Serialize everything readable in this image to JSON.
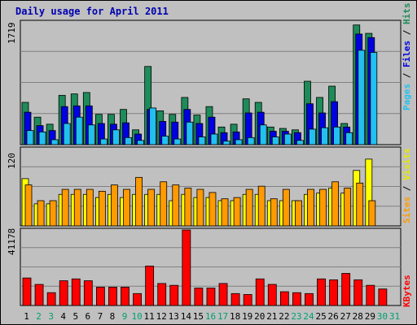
{
  "title": "Daily usage for April 2011",
  "chart_data": [
    {
      "type": "bar",
      "name": "hits-files-pages",
      "max_label": "1719",
      "ylim": [
        0,
        1719
      ],
      "legend": [
        "Pages",
        "Files",
        "Hits"
      ],
      "colors": {
        "Hits": "#1e8b5a",
        "Files": "#0000e0",
        "Pages": "#22c0f0",
        "Legend_sep": "#000000"
      },
      "series": [
        {
          "name": "Hits",
          "values": [
            600,
            390,
            290,
            700,
            720,
            740,
            430,
            430,
            500,
            210,
            1110,
            480,
            430,
            670,
            420,
            540,
            250,
            290,
            650,
            600,
            250,
            230,
            210,
            900,
            670,
            830,
            300,
            1699,
            1580,
            0
          ]
        },
        {
          "name": "Files",
          "values": [
            460,
            270,
            200,
            540,
            550,
            550,
            300,
            290,
            310,
            150,
            500,
            330,
            320,
            500,
            300,
            390,
            170,
            180,
            450,
            460,
            190,
            190,
            170,
            580,
            450,
            610,
            250,
            1570,
            1520,
            0
          ]
        },
        {
          "name": "Pages",
          "values": [
            200,
            180,
            70,
            300,
            390,
            280,
            80,
            210,
            100,
            60,
            520,
            120,
            80,
            320,
            110,
            150,
            50,
            70,
            100,
            280,
            110,
            150,
            60,
            220,
            240,
            250,
            170,
            1340,
            1310,
            0
          ]
        }
      ]
    },
    {
      "type": "bar",
      "name": "visits-sites",
      "max_label": "120",
      "ylim": [
        0,
        120
      ],
      "legend": [
        "Sites",
        "Visits"
      ],
      "colors": {
        "Visits": "#ffff00",
        "Sites": "#ff9a00"
      },
      "series": [
        {
          "name": "Visits",
          "values": [
            75,
            35,
            35,
            50,
            50,
            50,
            45,
            50,
            45,
            50,
            50,
            50,
            40,
            50,
            45,
            45,
            40,
            40,
            50,
            50,
            40,
            40,
            40,
            50,
            52,
            60,
            52,
            88,
            106,
            0
          ]
        },
        {
          "name": "Sites",
          "values": [
            65,
            40,
            40,
            58,
            58,
            58,
            55,
            65,
            58,
            77,
            58,
            70,
            65,
            60,
            58,
            53,
            43,
            45,
            58,
            63,
            43,
            58,
            40,
            58,
            58,
            70,
            60,
            68,
            40,
            0
          ]
        }
      ]
    },
    {
      "type": "bar",
      "name": "kbytes",
      "max_label": "41178",
      "ylim": [
        0,
        41178
      ],
      "legend": [
        "KBytes"
      ],
      "colors": {
        "KBytes": "#ff0000"
      },
      "series": [
        {
          "name": "KBytes",
          "values": [
            15000,
            11500,
            7000,
            13500,
            14500,
            13500,
            10000,
            10000,
            10000,
            6500,
            21500,
            12000,
            11000,
            41178,
            9500,
            9500,
            12000,
            6500,
            6000,
            14500,
            11500,
            7500,
            7000,
            6500,
            14500,
            14000,
            17500,
            14000,
            11000,
            9000
          ]
        }
      ]
    }
  ],
  "x_axis": {
    "categories": [
      "1",
      "2",
      "3",
      "4",
      "5",
      "6",
      "7",
      "8",
      "9",
      "10",
      "11",
      "12",
      "13",
      "14",
      "15",
      "16",
      "17",
      "18",
      "19",
      "20",
      "21",
      "22",
      "23",
      "24",
      "25",
      "26",
      "27",
      "28",
      "29",
      "30",
      "31"
    ],
    "weekend_days": [
      "2",
      "3",
      "9",
      "10",
      "16",
      "17",
      "23",
      "24",
      "30",
      "31"
    ],
    "weekday_color": "#000000",
    "weekend_color": "#00a070"
  },
  "legend_text": {
    "top": {
      "pages": "Pages",
      "files": "Files",
      "hits": "Hits"
    },
    "mid": {
      "sites": "Sites",
      "visits": "Visits"
    },
    "bot": {
      "kbytes": "KBytes"
    }
  }
}
